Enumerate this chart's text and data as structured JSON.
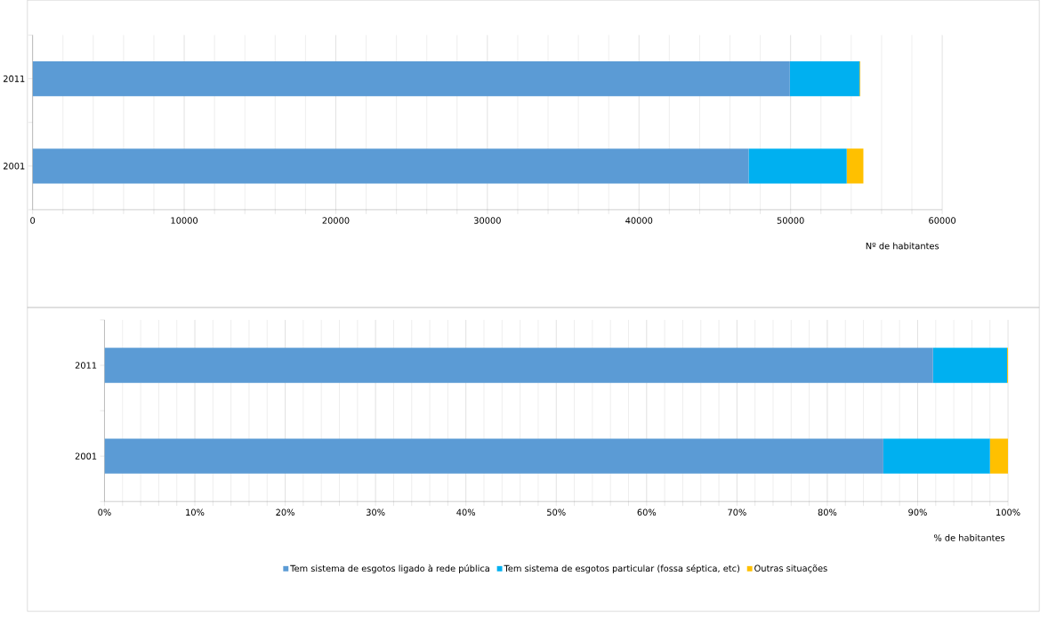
{
  "chart_data": [
    {
      "type": "bar",
      "orientation": "horizontal",
      "stacked": true,
      "categories": [
        "2011",
        "2001"
      ],
      "xlabel": "Nº de habitantes",
      "series": [
        {
          "color": "#5b9bd5",
          "values": [
            49950,
            47230
          ]
        },
        {
          "color": "#00b0f0",
          "values": [
            4600,
            6470
          ]
        },
        {
          "color": "#ffc000",
          "values": [
            50,
            1100
          ]
        }
      ],
      "xlim": [
        0,
        60000
      ],
      "xticks": [
        0,
        10000,
        20000,
        30000,
        40000,
        50000,
        60000
      ],
      "grid": "x"
    },
    {
      "type": "bar",
      "orientation": "horizontal",
      "stacked": true,
      "categories": [
        "2011",
        "2001"
      ],
      "xlabel": "% de habitantes",
      "legend": "bottom",
      "series": [
        {
          "name": "Tem sistema de esgotos ligado à rede pública",
          "color": "#5b9bd5",
          "values": [
            91.7,
            86.2
          ]
        },
        {
          "name": "Tem sistema de esgotos particular (fossa séptica, etc)",
          "color": "#00b0f0",
          "values": [
            8.2,
            11.8
          ]
        },
        {
          "name": "Outras situações",
          "color": "#ffc000",
          "values": [
            0.1,
            2.0
          ]
        }
      ],
      "xlim": [
        0,
        100
      ],
      "xticks": [
        {
          "value": 0,
          "label": "0%"
        },
        {
          "value": 10,
          "label": "10%"
        },
        {
          "value": 20,
          "label": "20%"
        },
        {
          "value": 30,
          "label": "30%"
        },
        {
          "value": 40,
          "label": "40%"
        },
        {
          "value": 50,
          "label": "50%"
        },
        {
          "value": 60,
          "label": "60%"
        },
        {
          "value": 70,
          "label": "70%"
        },
        {
          "value": 80,
          "label": "80%"
        },
        {
          "value": 90,
          "label": "90%"
        },
        {
          "value": 100,
          "label": "100%"
        }
      ],
      "grid": "x"
    }
  ]
}
